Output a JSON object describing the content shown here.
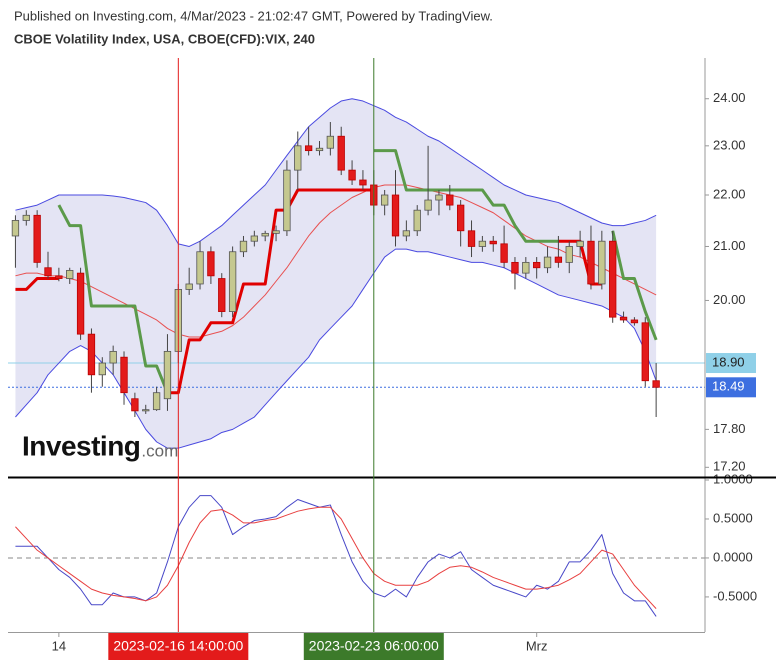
{
  "header": {
    "published": "Published on Investing.com, 4/Mar/2023 - 21:02:47 GMT, Powered by TradingView.",
    "logo_main": "Investing",
    "logo_suffix": ".com"
  },
  "chart_data": [
    {
      "type": "candlestick",
      "title": "CBOE Volatility Index, USA, CBOE(CFD):VIX, 240",
      "categories": [
        null,
        null,
        null,
        null,
        "14",
        null,
        null,
        null,
        null,
        null,
        null,
        null,
        null,
        null,
        null,
        null,
        null,
        null,
        null,
        null,
        null,
        null,
        null,
        null,
        null,
        null,
        null,
        null,
        null,
        null,
        null,
        null,
        null,
        null,
        null,
        null,
        null,
        null,
        null,
        null,
        null,
        null,
        null,
        null,
        null,
        null,
        null,
        null,
        "Mrz",
        null,
        null,
        null,
        null,
        null,
        null,
        null,
        null,
        null,
        null,
        null,
        null,
        null,
        null,
        null
      ],
      "open": [
        21.2,
        21.5,
        21.6,
        20.6,
        20.45,
        20.4,
        20.5,
        19.4,
        18.7,
        18.9,
        19.0,
        18.3,
        18.1,
        18.12,
        18.3,
        19.1,
        20.2,
        20.3,
        20.9,
        20.4,
        19.8,
        20.9,
        21.1,
        21.2,
        21.25,
        21.3,
        22.5,
        23.0,
        22.9,
        22.95,
        23.2,
        22.5,
        22.3,
        22.2,
        21.8,
        22.0,
        21.2,
        21.3,
        21.7,
        21.9,
        22.0,
        21.8,
        21.3,
        21.0,
        21.1,
        21.05,
        20.7,
        20.5,
        20.7,
        20.6,
        20.8,
        20.7,
        21.0,
        21.1,
        20.3,
        21.1,
        19.7,
        19.65,
        19.6,
        18.6,
        null,
        null,
        null,
        null
      ],
      "high": [
        21.6,
        21.7,
        21.7,
        20.9,
        20.6,
        20.6,
        20.6,
        19.5,
        19.0,
        19.2,
        19.1,
        18.4,
        18.2,
        18.5,
        19.4,
        20.3,
        20.6,
        21.1,
        21.0,
        20.5,
        21.0,
        21.2,
        21.3,
        21.3,
        21.4,
        22.7,
        23.3,
        23.4,
        23.1,
        23.5,
        23.4,
        22.7,
        22.5,
        22.5,
        22.1,
        22.5,
        21.5,
        21.8,
        23.0,
        22.1,
        22.2,
        21.9,
        21.5,
        21.2,
        21.2,
        21.4,
        20.8,
        20.8,
        20.8,
        21.0,
        21.2,
        21.1,
        21.3,
        21.4,
        21.3,
        21.3,
        19.8,
        19.7,
        19.7,
        18.9,
        null,
        null,
        null,
        null
      ],
      "low": [
        20.6,
        21.4,
        20.6,
        20.4,
        20.35,
        20.3,
        19.3,
        18.4,
        18.5,
        18.7,
        18.2,
        18.0,
        18.05,
        18.1,
        18.1,
        18.9,
        20.1,
        20.2,
        20.3,
        19.7,
        19.7,
        20.8,
        21.0,
        21.1,
        21.1,
        21.2,
        22.1,
        22.8,
        22.8,
        22.8,
        22.4,
        22.2,
        22.1,
        21.6,
        21.6,
        21.0,
        21.1,
        21.2,
        21.6,
        21.6,
        21.7,
        21.0,
        20.8,
        20.9,
        20.9,
        20.6,
        20.2,
        20.4,
        20.4,
        20.5,
        20.6,
        20.5,
        20.8,
        20.2,
        20.2,
        19.6,
        19.6,
        19.55,
        18.5,
        18.0,
        null,
        null,
        null,
        null
      ],
      "close": [
        21.5,
        21.6,
        20.7,
        20.45,
        20.4,
        20.55,
        19.4,
        18.7,
        18.9,
        19.1,
        18.4,
        18.1,
        18.12,
        18.4,
        19.1,
        20.2,
        20.3,
        20.9,
        20.45,
        19.8,
        20.9,
        21.1,
        21.2,
        21.25,
        21.3,
        22.5,
        23.0,
        22.9,
        22.95,
        23.2,
        22.5,
        22.3,
        22.2,
        21.8,
        22.0,
        21.2,
        21.3,
        21.7,
        21.9,
        22.0,
        21.8,
        21.3,
        21.0,
        21.1,
        21.05,
        20.7,
        20.5,
        20.7,
        20.6,
        20.8,
        20.7,
        21.0,
        21.1,
        20.3,
        21.1,
        19.7,
        19.65,
        19.6,
        18.6,
        18.49,
        null,
        null,
        null,
        null
      ],
      "up_color": "#c5c88f",
      "down_color": "#e31b1b",
      "band_fill_color": "#e4e4f4",
      "series": [
        {
          "color": "#4a4ae0",
          "width": 1,
          "values": [
            21.7,
            21.75,
            21.8,
            21.9,
            22.0,
            22.0,
            22.0,
            22.0,
            22.0,
            21.98,
            21.95,
            21.9,
            21.85,
            21.7,
            21.4,
            21.05,
            21.0,
            21.1,
            21.25,
            21.4,
            21.6,
            21.8,
            22.0,
            22.2,
            22.5,
            22.8,
            23.1,
            23.4,
            23.6,
            23.8,
            23.95,
            24.0,
            23.95,
            23.85,
            23.75,
            23.6,
            23.5,
            23.35,
            23.2,
            23.1,
            22.95,
            22.8,
            22.65,
            22.5,
            22.35,
            22.2,
            22.1,
            22.0,
            21.95,
            21.9,
            21.85,
            21.75,
            21.65,
            21.55,
            21.45,
            21.4,
            21.4,
            21.45,
            21.5,
            21.6,
            null,
            null,
            null,
            null
          ]
        },
        {
          "color": "#4a4ae0",
          "width": 1,
          "values": [
            18.0,
            18.2,
            18.4,
            18.7,
            18.9,
            19.1,
            19.2,
            19.1,
            18.9,
            18.7,
            18.4,
            18.1,
            17.8,
            17.6,
            17.5,
            17.5,
            17.55,
            17.6,
            17.65,
            17.75,
            17.8,
            17.9,
            18.0,
            18.2,
            18.4,
            18.6,
            18.8,
            19.0,
            19.3,
            19.5,
            19.7,
            19.9,
            20.2,
            20.5,
            20.8,
            20.95,
            20.95,
            20.9,
            20.9,
            20.85,
            20.8,
            20.75,
            20.7,
            20.7,
            20.65,
            20.6,
            20.5,
            20.4,
            20.3,
            20.2,
            20.1,
            20.05,
            20.0,
            19.95,
            19.9,
            19.8,
            19.7,
            19.5,
            19.1,
            18.6,
            null,
            null,
            null,
            null
          ]
        },
        {
          "color": "#e85050",
          "width": 1,
          "values": [
            20.45,
            20.5,
            20.5,
            20.45,
            20.45,
            20.4,
            20.35,
            20.25,
            20.15,
            20.05,
            19.95,
            19.85,
            19.75,
            19.65,
            19.5,
            19.4,
            19.35,
            19.35,
            19.4,
            19.45,
            19.55,
            19.7,
            19.9,
            20.1,
            20.35,
            20.6,
            20.9,
            21.2,
            21.45,
            21.65,
            21.8,
            21.95,
            22.05,
            22.15,
            22.2,
            22.2,
            22.2,
            22.15,
            22.1,
            22.05,
            22.0,
            21.95,
            21.85,
            21.75,
            21.65,
            21.5,
            21.35,
            21.2,
            21.1,
            21.0,
            20.95,
            20.85,
            20.8,
            20.7,
            20.6,
            20.5,
            20.4,
            20.3,
            20.2,
            20.1,
            null,
            null,
            null,
            null
          ]
        },
        {
          "color": "#e00000",
          "width": 3,
          "values": [
            20.2,
            20.2,
            20.4,
            20.4,
            20.4,
            null,
            null,
            null,
            null,
            null,
            null,
            null,
            null,
            null,
            18.4,
            18.4,
            19.3,
            19.3,
            19.6,
            19.6,
            19.6,
            20.3,
            20.3,
            20.3,
            21.7,
            21.7,
            22.1,
            22.1,
            22.1,
            22.1,
            22.1,
            22.1,
            22.1,
            22.1,
            null,
            null,
            null,
            null,
            null,
            null,
            null,
            null,
            null,
            null,
            null,
            null,
            null,
            null,
            null,
            null,
            21.1,
            21.1,
            21.1,
            20.3,
            20.3,
            null,
            null,
            null,
            null,
            null,
            null,
            null,
            null,
            null
          ]
        },
        {
          "color": "#5b9a4a",
          "width": 3,
          "values": [
            null,
            null,
            null,
            null,
            21.8,
            21.4,
            21.4,
            19.9,
            19.9,
            19.9,
            19.9,
            19.9,
            18.85,
            18.85,
            18.4,
            null,
            null,
            null,
            null,
            null,
            null,
            null,
            null,
            null,
            null,
            null,
            null,
            null,
            null,
            null,
            null,
            null,
            null,
            22.9,
            22.9,
            22.9,
            22.1,
            22.1,
            22.1,
            22.1,
            22.1,
            22.1,
            22.1,
            22.1,
            21.8,
            21.8,
            21.4,
            21.1,
            21.1,
            21.1,
            21.1,
            null,
            null,
            null,
            null,
            21.3,
            20.4,
            20.4,
            19.8,
            19.3,
            null,
            null,
            null,
            null
          ]
        }
      ],
      "log_scale": true,
      "ylim": [
        17.05,
        24.9
      ],
      "yticks": [
        {
          "value": 24,
          "label": "24.00"
        },
        {
          "value": 23,
          "label": "23.00"
        },
        {
          "value": 22,
          "label": "22.00"
        },
        {
          "value": 21,
          "label": "21.00"
        },
        {
          "value": 20,
          "label": "20.00"
        },
        {
          "value": 17.8,
          "label": "17.80"
        },
        {
          "value": 17.2,
          "label": "17.20"
        }
      ],
      "price_lines": [
        {
          "value": 18.9,
          "label": "18.90",
          "color": "#8fd0e8",
          "text_color": "#222",
          "dotted": false
        },
        {
          "value": 18.49,
          "label": "18.49",
          "color": "#3d6fe0",
          "text_color": "#fff",
          "dotted": true
        }
      ],
      "markers": [
        {
          "index": 15,
          "label": "2023-02-16 14:00:00",
          "color": "#e31b1b"
        },
        {
          "index": 33,
          "label": "2023-02-23 06:00:00",
          "color": "#3c7a2a"
        }
      ]
    },
    {
      "type": "line",
      "series": [
        {
          "color": "#4848c8",
          "width": 1,
          "values": [
            0.15,
            0.15,
            0.15,
            0.0,
            -0.15,
            -0.25,
            -0.4,
            -0.6,
            -0.6,
            -0.45,
            -0.5,
            -0.5,
            -0.55,
            -0.45,
            -0.05,
            0.4,
            0.65,
            0.8,
            0.8,
            0.65,
            0.3,
            0.4,
            0.48,
            0.5,
            0.53,
            0.65,
            0.75,
            0.7,
            0.65,
            0.68,
            0.3,
            -0.05,
            -0.3,
            -0.45,
            -0.5,
            -0.4,
            -0.5,
            -0.25,
            -0.05,
            0.05,
            0.0,
            0.08,
            -0.15,
            -0.25,
            -0.35,
            -0.4,
            -0.45,
            -0.5,
            -0.35,
            -0.4,
            -0.3,
            -0.05,
            -0.05,
            0.1,
            0.3,
            -0.2,
            -0.45,
            -0.55,
            -0.55,
            -0.75,
            null,
            null,
            null,
            null
          ]
        },
        {
          "color": "#e84040",
          "width": 1,
          "values": [
            0.4,
            0.25,
            0.1,
            0.0,
            -0.1,
            -0.2,
            -0.3,
            -0.4,
            -0.45,
            -0.48,
            -0.5,
            -0.52,
            -0.55,
            -0.5,
            -0.35,
            -0.1,
            0.2,
            0.45,
            0.6,
            0.62,
            0.55,
            0.45,
            0.45,
            0.48,
            0.5,
            0.55,
            0.6,
            0.63,
            0.65,
            0.65,
            0.5,
            0.25,
            0.0,
            -0.2,
            -0.3,
            -0.35,
            -0.35,
            -0.35,
            -0.3,
            -0.2,
            -0.12,
            -0.1,
            -0.12,
            -0.18,
            -0.25,
            -0.3,
            -0.35,
            -0.4,
            -0.4,
            -0.38,
            -0.35,
            -0.28,
            -0.2,
            -0.05,
            0.1,
            0.05,
            -0.15,
            -0.35,
            -0.5,
            -0.65,
            null,
            null,
            null,
            null
          ]
        }
      ],
      "ylim": [
        -0.95,
        1.0
      ],
      "yticks": [
        {
          "value": 1,
          "label": "1.0000"
        },
        {
          "value": 0.5,
          "label": "0.5000"
        },
        {
          "value": 0,
          "label": "0.0000"
        },
        {
          "value": -0.5,
          "label": "-0.5000"
        }
      ],
      "hline": 0
    }
  ]
}
